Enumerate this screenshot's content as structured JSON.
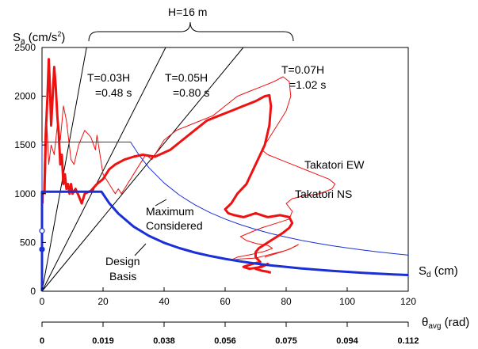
{
  "chart_data": {
    "type": "line",
    "ylabel": "S",
    "ylabel_sub": "a",
    "ylabel_unit": " (cm/s",
    "ylabel_sup": "2",
    "ylabel_close": ")",
    "xlabel": "S",
    "xlabel_sub": "d",
    "xlabel_unit": " (cm)",
    "x2label": "θ",
    "x2label_sub": "avg",
    "x2label_unit": " (rad)",
    "xlim": [
      0,
      120
    ],
    "ylim": [
      0,
      2500
    ],
    "xticks": [
      "0",
      "20",
      "40",
      "60",
      "80",
      "100",
      "120"
    ],
    "yticks": [
      "0",
      "500",
      "1000",
      "1500",
      "2000",
      "2500"
    ],
    "x2ticks": [
      "0",
      "0.019",
      "0.038",
      "0.056",
      "0.075",
      "0.094",
      "0.112"
    ],
    "brace_label": "H=16 m",
    "period_lines": [
      {
        "label1": "T=0.03H",
        "label2": "=0.48 s",
        "slope": 171.3
      },
      {
        "label1": "T=0.05H",
        "label2": "=0.80 s",
        "slope": 61.7
      },
      {
        "label1": "T=0.07H",
        "label2": "=1.02 s",
        "slope": 37.9
      }
    ],
    "curve_labels": {
      "takatori_ew": "Takatori EW",
      "takatori_ns": "Takatori NS",
      "maximum_considered_1": "Maximum",
      "maximum_considered_2": "Considered",
      "design_basis_1": "Design",
      "design_basis_2": "Basis"
    },
    "series": [
      {
        "key": "design_basis",
        "color": "#1a2fd6",
        "width": 3,
        "x": [
          0,
          0,
          19.5,
          22,
          25,
          30,
          35,
          40,
          45,
          50,
          55,
          60,
          65,
          70,
          75,
          80,
          85,
          90,
          95,
          100,
          105,
          110,
          115,
          120
        ],
        "y": [
          0,
          1020,
          1020,
          904,
          796,
          663,
          568,
          497,
          442,
          398,
          362,
          332,
          306,
          284,
          265,
          249,
          234,
          221,
          209,
          199,
          189,
          181,
          173,
          166
        ]
      },
      {
        "key": "maximum_considered",
        "color": "#1a2fd6",
        "width": 1,
        "x": [
          0,
          0,
          29,
          32,
          35,
          40,
          45,
          50,
          55,
          60,
          65,
          70,
          75,
          80,
          85,
          90,
          95,
          100,
          105,
          110,
          115,
          120
        ],
        "y": [
          0,
          1530,
          1530,
          1387,
          1268,
          1110,
          986,
          888,
          807,
          740,
          683,
          634,
          592,
          555,
          522,
          493,
          467,
          444,
          423,
          404,
          386,
          370
        ]
      },
      {
        "key": "takatori_ns",
        "color": "#ee1111",
        "width": 3,
        "x": [
          0.8,
          1.2,
          1.8,
          2.2,
          2.6,
          3.0,
          3.5,
          4.0,
          4.5,
          5.0,
          5.5,
          6.0,
          6.5,
          7.0,
          7.5,
          8.0,
          8.5,
          9.0,
          9.5,
          10.0,
          11.0,
          12.0,
          13.0,
          14.0,
          16.0,
          18.0,
          20.0,
          22.0,
          24.0,
          27.0,
          30.0,
          33.0,
          37.0,
          42.0,
          46.0,
          50.0,
          54.0,
          58.0,
          62.0,
          66.0,
          70.0,
          73.0,
          74.5,
          75.0,
          74.5,
          73.0,
          70.0,
          67.0,
          64.0,
          62.0,
          60.0,
          61.0,
          63.0,
          66.0,
          70.0,
          74.0,
          78.0,
          81.0,
          82.0,
          81.0,
          79.0,
          77.0,
          75.0,
          73.0,
          71.0,
          70.0,
          70.0,
          71.5,
          69.0,
          66.0,
          68.0,
          72.0,
          74.0,
          72.0,
          70.0,
          72.0,
          74.0,
          75.0
        ],
        "y": [
          1000,
          1600,
          2000,
          2380,
          2100,
          1700,
          2000,
          2300,
          2100,
          1800,
          1600,
          1300,
          1400,
          1100,
          1200,
          1050,
          1100,
          1000,
          1100,
          1000,
          1050,
          980,
          900,
          1000,
          1030,
          1100,
          1150,
          1250,
          1300,
          1350,
          1380,
          1400,
          1380,
          1450,
          1550,
          1650,
          1750,
          1800,
          1850,
          1900,
          1950,
          2000,
          2010,
          1900,
          1700,
          1500,
          1300,
          1100,
          1000,
          900,
          840,
          800,
          780,
          760,
          800,
          760,
          780,
          760,
          700,
          650,
          600,
          560,
          520,
          480,
          440,
          400,
          350,
          300,
          280,
          250,
          230,
          250,
          280,
          260,
          230,
          210,
          200,
          190
        ]
      },
      {
        "key": "takatori_ew",
        "color": "#ee1111",
        "width": 1,
        "x": [
          0.4,
          0.8,
          1.2,
          1.6,
          2.2,
          3.0,
          4.0,
          5.0,
          6.0,
          7.0,
          8.0,
          9.5,
          10.5,
          12.0,
          14.0,
          16.0,
          17.5,
          18.0,
          20.0,
          22.0,
          24.0,
          25.0,
          26.0,
          28.0,
          30.0,
          32.0,
          34.0,
          36.0,
          40.0,
          44.0,
          48.0,
          52.0,
          56.0,
          60.0,
          64.0,
          68.0,
          72.0,
          76.0,
          79.0,
          81.0,
          81.5,
          80.0,
          77.0,
          74.0,
          72.0,
          74.0,
          78.0,
          82.0,
          86.0,
          90.0,
          94.0,
          96.0,
          95.0,
          91.0,
          86.0,
          82.0,
          80.0,
          82.0,
          81.0,
          77.0,
          72.0,
          68.0,
          65.0,
          67.0,
          70.0,
          74.0,
          75.5,
          73.0,
          69.0,
          64.0,
          62.0,
          65.0,
          70.0,
          75.0,
          80.0,
          83.0,
          84.0,
          81.0,
          77.0,
          73.0
        ],
        "y": [
          900,
          1400,
          1200,
          1700,
          1300,
          1500,
          1400,
          1700,
          1550,
          1900,
          1750,
          1350,
          1300,
          1500,
          1650,
          1580,
          1450,
          1600,
          1200,
          1100,
          1000,
          1050,
          1000,
          1100,
          1200,
          1300,
          1400,
          1350,
          1550,
          1650,
          1700,
          1750,
          1800,
          1900,
          2000,
          2050,
          2100,
          2150,
          2200,
          2150,
          2000,
          1850,
          1700,
          1550,
          1450,
          1400,
          1350,
          1300,
          1250,
          1200,
          1150,
          1100,
          1050,
          1000,
          980,
          950,
          900,
          820,
          740,
          700,
          650,
          600,
          560,
          520,
          490,
          470,
          440,
          410,
          380,
          350,
          320,
          330,
          340,
          380,
          420,
          460,
          480,
          430,
          390,
          350
        ]
      }
    ],
    "markers": [
      {
        "x": 0,
        "y": 620,
        "filled": false
      },
      {
        "x": 0,
        "y": 430,
        "filled": true
      }
    ]
  }
}
